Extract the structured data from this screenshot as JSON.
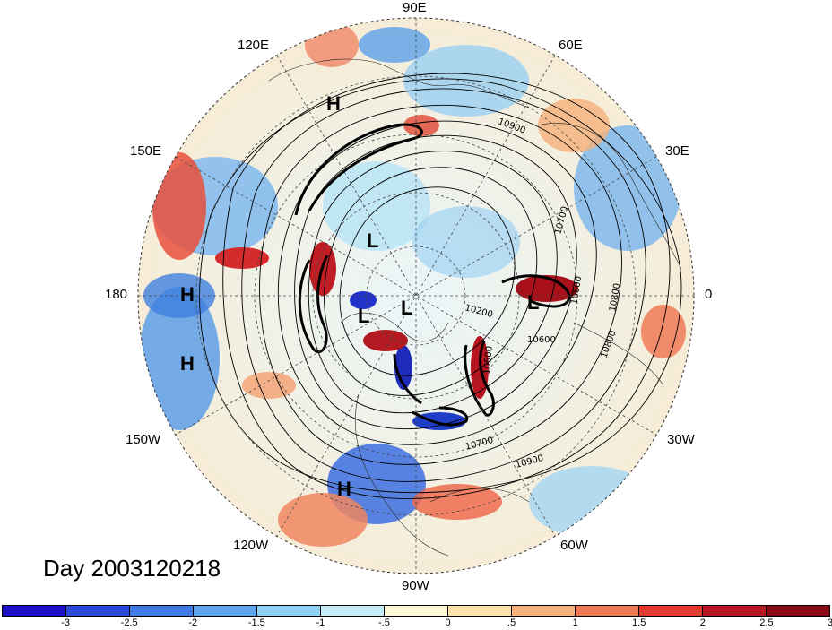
{
  "title": "Day 2003120218",
  "lon_labels": {
    "n90e": "90E",
    "n120e": "120E",
    "n60e": "60E",
    "n150e": "150E",
    "n30e": "30E",
    "n180": "180",
    "n0": "0",
    "n150w": "150W",
    "n30w": "30W",
    "n120w": "120W",
    "n60w": "60W",
    "n90w": "90W"
  },
  "pressure_labels": {
    "H": "H",
    "L": "L"
  },
  "contour_labels": [
    "10900",
    "10700",
    "10600",
    "10800",
    "10200",
    "10500",
    "10700",
    "10900",
    "10600",
    "10800"
  ],
  "colorbar": {
    "colors": [
      "#1e10c8",
      "#2a4bd7",
      "#3e7be6",
      "#5fa5f0",
      "#8fd0f5",
      "#c6eef8",
      "#fdf7d4",
      "#fde3a8",
      "#f7b17a",
      "#ef7a56",
      "#e23b32",
      "#b51a22",
      "#8a0a16"
    ],
    "ticks": [
      "-3",
      "-2.5",
      "-2",
      "-1.5",
      "-1",
      "-.5",
      "0",
      ".5",
      "1",
      "1.5",
      "2",
      "2.5",
      "3"
    ]
  }
}
